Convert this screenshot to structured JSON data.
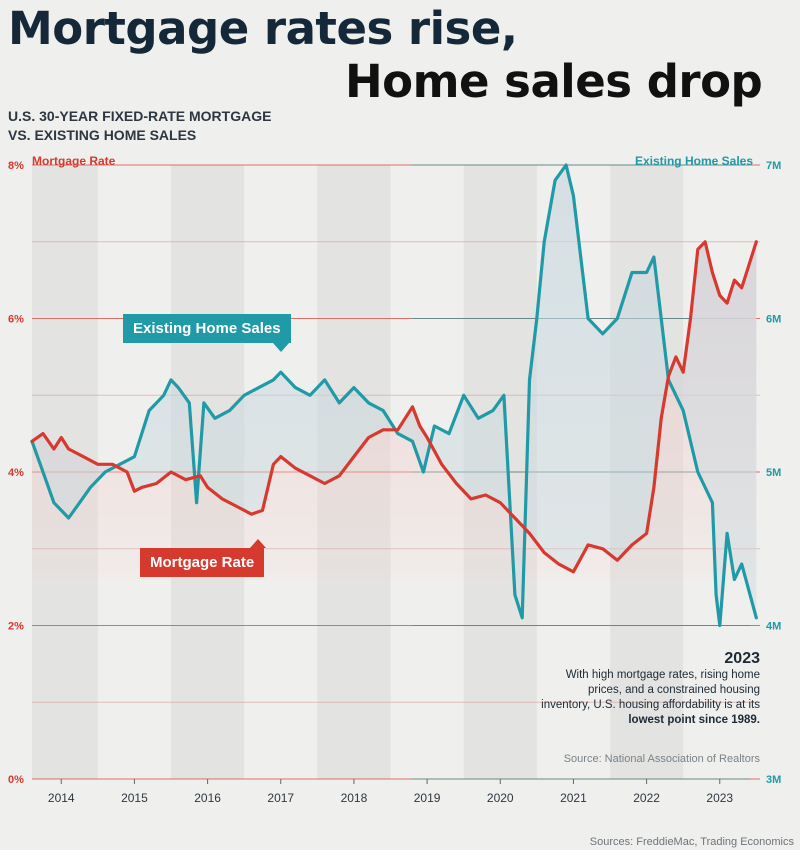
{
  "headline": {
    "line1": "Mortgage rates rise,",
    "line2": "Home sales drop"
  },
  "subtitle": {
    "line1": "U.S. 30-YEAR FIXED-RATE MORTGAGE",
    "line2": "VS. EXISTING HOME SALES"
  },
  "callouts": {
    "existing": "Existing Home Sales",
    "mortgage": "Mortgage Rate"
  },
  "note": {
    "year": "2023",
    "text_before": "With high mortgage rates, rising home prices, and a constrained housing inventory, U.S. housing affordability is at its ",
    "text_bold": "lowest point since 1989."
  },
  "source_nar": "Source: National Association of Realtors",
  "sources_footer": "Sources: FreddieMac, Trading Economics",
  "colors": {
    "mortgage": "#d63a2f",
    "sales": "#1f9aa6"
  },
  "chart_data": {
    "type": "line",
    "left_axis": {
      "label": "Mortgage Rate",
      "ticks": [
        "0%",
        "2%",
        "4%",
        "6%",
        "8%"
      ],
      "tick_values": [
        0,
        2,
        4,
        6,
        8
      ],
      "range": [
        0,
        8
      ]
    },
    "right_axis": {
      "label": "Existing Home Sales",
      "ticks": [
        "3M",
        "4M",
        "5M",
        "6M",
        "7M"
      ],
      "tick_values": [
        3,
        4,
        5,
        6,
        7
      ],
      "range": [
        3,
        7
      ]
    },
    "x_range": [
      2013.6,
      2023.55
    ],
    "x_ticks": [
      "2014",
      "2015",
      "2016",
      "2017",
      "2018",
      "2019",
      "2020",
      "2021",
      "2022",
      "2023"
    ],
    "series": [
      {
        "name": "Mortgage Rate",
        "axis": "left",
        "x": [
          2013.6,
          2013.75,
          2013.9,
          2014.0,
          2014.1,
          2014.3,
          2014.5,
          2014.7,
          2014.9,
          2015.0,
          2015.1,
          2015.3,
          2015.5,
          2015.7,
          2015.9,
          2016.0,
          2016.2,
          2016.4,
          2016.6,
          2016.75,
          2016.9,
          2017.0,
          2017.2,
          2017.4,
          2017.6,
          2017.8,
          2018.0,
          2018.2,
          2018.4,
          2018.6,
          2018.8,
          2018.9,
          2019.0,
          2019.2,
          2019.4,
          2019.6,
          2019.8,
          2020.0,
          2020.2,
          2020.4,
          2020.6,
          2020.8,
          2021.0,
          2021.2,
          2021.4,
          2021.6,
          2021.8,
          2022.0,
          2022.1,
          2022.2,
          2022.3,
          2022.4,
          2022.5,
          2022.6,
          2022.7,
          2022.8,
          2022.9,
          2023.0,
          2023.1,
          2023.2,
          2023.3,
          2023.4,
          2023.5
        ],
        "values": [
          4.4,
          4.5,
          4.3,
          4.45,
          4.3,
          4.2,
          4.1,
          4.1,
          4.0,
          3.75,
          3.8,
          3.85,
          4.0,
          3.9,
          3.95,
          3.8,
          3.65,
          3.55,
          3.45,
          3.5,
          4.1,
          4.2,
          4.05,
          3.95,
          3.85,
          3.95,
          4.2,
          4.45,
          4.55,
          4.55,
          4.85,
          4.6,
          4.45,
          4.1,
          3.85,
          3.65,
          3.7,
          3.6,
          3.4,
          3.2,
          2.95,
          2.8,
          2.7,
          3.05,
          3.0,
          2.85,
          3.05,
          3.2,
          3.8,
          4.7,
          5.25,
          5.5,
          5.3,
          6.0,
          6.9,
          7.0,
          6.6,
          6.3,
          6.2,
          6.5,
          6.4,
          6.7,
          7.0
        ]
      },
      {
        "name": "Existing Home Sales",
        "axis": "right",
        "x": [
          2013.6,
          2013.75,
          2013.9,
          2014.0,
          2014.1,
          2014.25,
          2014.4,
          2014.6,
          2014.8,
          2015.0,
          2015.2,
          2015.4,
          2015.5,
          2015.6,
          2015.75,
          2015.85,
          2015.95,
          2016.1,
          2016.3,
          2016.5,
          2016.7,
          2016.9,
          2017.0,
          2017.2,
          2017.4,
          2017.6,
          2017.8,
          2018.0,
          2018.2,
          2018.4,
          2018.6,
          2018.8,
          2018.95,
          2019.1,
          2019.3,
          2019.5,
          2019.7,
          2019.9,
          2020.05,
          2020.2,
          2020.3,
          2020.4,
          2020.5,
          2020.6,
          2020.75,
          2020.9,
          2021.0,
          2021.2,
          2021.4,
          2021.6,
          2021.8,
          2022.0,
          2022.1,
          2022.2,
          2022.3,
          2022.5,
          2022.7,
          2022.9,
          2022.95,
          2023.0,
          2023.1,
          2023.2,
          2023.3,
          2023.5
        ],
        "values": [
          5.2,
          5.0,
          4.8,
          4.75,
          4.7,
          4.8,
          4.9,
          5.0,
          5.05,
          5.1,
          5.4,
          5.5,
          5.6,
          5.55,
          5.45,
          4.8,
          5.45,
          5.35,
          5.4,
          5.5,
          5.55,
          5.6,
          5.65,
          5.55,
          5.5,
          5.6,
          5.45,
          5.55,
          5.45,
          5.4,
          5.25,
          5.2,
          5.0,
          5.3,
          5.25,
          5.5,
          5.35,
          5.4,
          5.5,
          4.2,
          4.05,
          5.6,
          6.0,
          6.5,
          6.9,
          7.0,
          6.8,
          6.0,
          5.9,
          6.0,
          6.3,
          6.3,
          6.4,
          6.0,
          5.6,
          5.4,
          5.0,
          4.8,
          4.2,
          4.0,
          4.6,
          4.3,
          4.4,
          4.05
        ]
      }
    ]
  }
}
